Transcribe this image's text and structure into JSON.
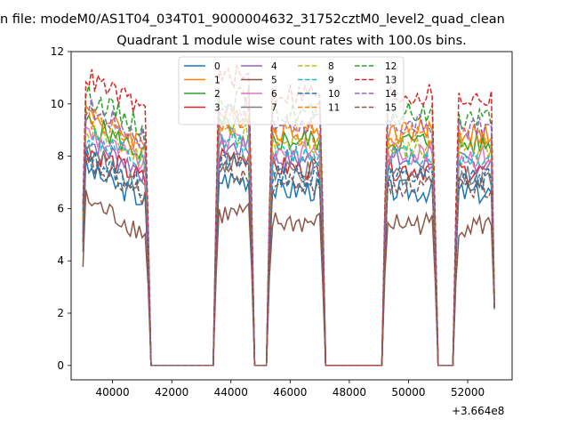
{
  "chart_data": {
    "type": "line",
    "suptitle": "n file: modeM0/AS1T04_034T01_9000004632_31752cztM0_level2_quad_clean",
    "title": "Quadrant 1 module wise count rates with 100.0s bins.",
    "xlabel": "",
    "ylabel": "",
    "x_offset_label": "+3.664e8",
    "xlim": [
      38600,
      53500
    ],
    "ylim": [
      -0.55,
      12
    ],
    "x_ticks": [
      40000,
      42000,
      44000,
      46000,
      48000,
      50000,
      52000
    ],
    "x_tick_labels": [
      "40000",
      "42000",
      "44000",
      "46000",
      "48000",
      "50000",
      "52000"
    ],
    "y_ticks": [
      0,
      2,
      4,
      6,
      8,
      10,
      12
    ],
    "y_tick_labels": [
      "0",
      "2",
      "4",
      "6",
      "8",
      "10",
      "12"
    ],
    "grid": false,
    "legend_position": "upper center, 4 columns",
    "segments": [
      [
        39000,
        41200
      ],
      [
        43500,
        44700
      ],
      [
        45300,
        47100
      ],
      [
        49200,
        50900
      ],
      [
        51600,
        52900
      ]
    ],
    "x": [
      39000,
      39100,
      39200,
      39300,
      39400,
      39500,
      39600,
      39700,
      39800,
      39900,
      40000,
      40100,
      40200,
      40300,
      40400,
      40500,
      40600,
      40700,
      40800,
      40900,
      41000,
      41100,
      41200,
      41300,
      41400,
      41500,
      41600,
      41700,
      41800,
      41900,
      42000,
      42100,
      42200,
      42300,
      42400,
      42500,
      42600,
      42700,
      42800,
      42900,
      43000,
      43100,
      43200,
      43300,
      43400,
      43500,
      43600,
      43700,
      43800,
      43900,
      44000,
      44100,
      44200,
      44300,
      44400,
      44500,
      44600,
      44700,
      44800,
      44900,
      45000,
      45100,
      45200,
      45300,
      45400,
      45500,
      45600,
      45700,
      45800,
      45900,
      46000,
      46100,
      46200,
      46300,
      46400,
      46500,
      46600,
      46700,
      46800,
      46900,
      47000,
      47100,
      47200,
      47300,
      47400,
      47500,
      47600,
      47700,
      47800,
      47900,
      48000,
      48100,
      48200,
      48300,
      48400,
      48500,
      48600,
      48700,
      48800,
      48900,
      49000,
      49100,
      49200,
      49300,
      49400,
      49500,
      49600,
      49700,
      49800,
      49900,
      50000,
      50100,
      50200,
      50300,
      50400,
      50500,
      50600,
      50700,
      50800,
      50900,
      51000,
      51100,
      51200,
      51300,
      51400,
      51500,
      51600,
      51700,
      51800,
      51900,
      52000,
      52100,
      52200,
      52300,
      52400,
      52500,
      52600,
      52700,
      52800,
      52900
    ],
    "series": [
      {
        "name": "0",
        "color": "#1f77b4",
        "style": "solid",
        "level": 6.4
      },
      {
        "name": "1",
        "color": "#ff7f0e",
        "style": "solid",
        "level": 8.6
      },
      {
        "name": "2",
        "color": "#2ca02c",
        "style": "solid",
        "level": 8.2
      },
      {
        "name": "3",
        "color": "#d62728",
        "style": "solid",
        "level": 7.2
      },
      {
        "name": "4",
        "color": "#9467bd",
        "style": "solid",
        "level": 7.5
      },
      {
        "name": "5",
        "color": "#8c564b",
        "style": "solid",
        "level": 5.2
      },
      {
        "name": "6",
        "color": "#e377c2",
        "style": "solid",
        "level": 7.8
      },
      {
        "name": "7",
        "color": "#7f7f7f",
        "style": "solid",
        "level": 7.0
      },
      {
        "name": "8",
        "color": "#bcbd22",
        "style": "dashed",
        "level": 8.0
      },
      {
        "name": "9",
        "color": "#17becf",
        "style": "dashed",
        "level": 7.7
      },
      {
        "name": "10",
        "color": "#1f77b4",
        "style": "dashed",
        "level": 6.9
      },
      {
        "name": "11",
        "color": "#ff7f0e",
        "style": "dashed",
        "level": 8.4
      },
      {
        "name": "12",
        "color": "#2ca02c",
        "style": "dashed",
        "level": 9.2
      },
      {
        "name": "13",
        "color": "#d62728",
        "style": "dashed",
        "level": 9.9
      },
      {
        "name": "14",
        "color": "#9467bd",
        "style": "dashed",
        "level": 8.8
      },
      {
        "name": "15",
        "color": "#8c564b",
        "style": "dashed",
        "level": 6.6
      }
    ]
  }
}
